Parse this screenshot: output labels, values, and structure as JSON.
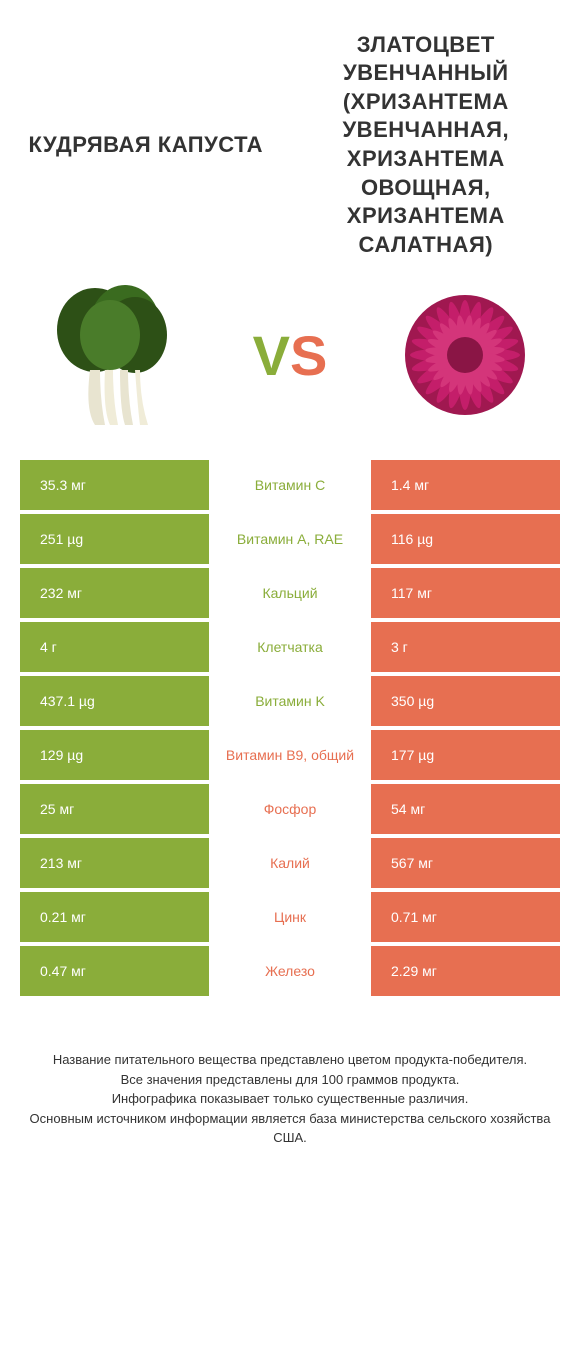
{
  "titles": {
    "left": "КУДРЯВАЯ КАПУСТА",
    "right": "ЗЛАТОЦВЕТ УВЕНЧАННЫЙ (ХРИЗАНТЕМА УВЕНЧАННАЯ, ХРИЗАНТЕМА ОВОЩНАЯ, ХРИЗАНТЕМА САЛАТНАЯ)"
  },
  "vs": {
    "v": "V",
    "s": "S"
  },
  "colors": {
    "left": "#8aad3a",
    "right": "#e76f51",
    "text": "#333333",
    "bg": "#ffffff"
  },
  "rows": [
    {
      "left": "35.3 мг",
      "mid": "Витамин C",
      "right": "1.4 мг",
      "winner": "left"
    },
    {
      "left": "251 µg",
      "mid": "Витамин A, RAE",
      "right": "116 µg",
      "winner": "left"
    },
    {
      "left": "232 мг",
      "mid": "Кальций",
      "right": "117 мг",
      "winner": "left"
    },
    {
      "left": "4 г",
      "mid": "Клетчатка",
      "right": "3 г",
      "winner": "left"
    },
    {
      "left": "437.1 µg",
      "mid": "Витамин K",
      "right": "350 µg",
      "winner": "left"
    },
    {
      "left": "129 µg",
      "mid": "Витамин B9, общий",
      "right": "177 µg",
      "winner": "right"
    },
    {
      "left": "25 мг",
      "mid": "Фосфор",
      "right": "54 мг",
      "winner": "right"
    },
    {
      "left": "213 мг",
      "mid": "Калий",
      "right": "567 мг",
      "winner": "right"
    },
    {
      "left": "0.21 мг",
      "mid": "Цинк",
      "right": "0.71 мг",
      "winner": "right"
    },
    {
      "left": "0.47 мг",
      "mid": "Железо",
      "right": "2.29 мг",
      "winner": "right"
    }
  ],
  "footer": {
    "l1": "Название питательного вещества представлено цветом продукта-победителя.",
    "l2": "Все значения представлены для 100 граммов продукта.",
    "l3": "Инфографика показывает только существенные различия.",
    "l4": "Основным источником информации является база министерства сельского хозяйства США."
  }
}
